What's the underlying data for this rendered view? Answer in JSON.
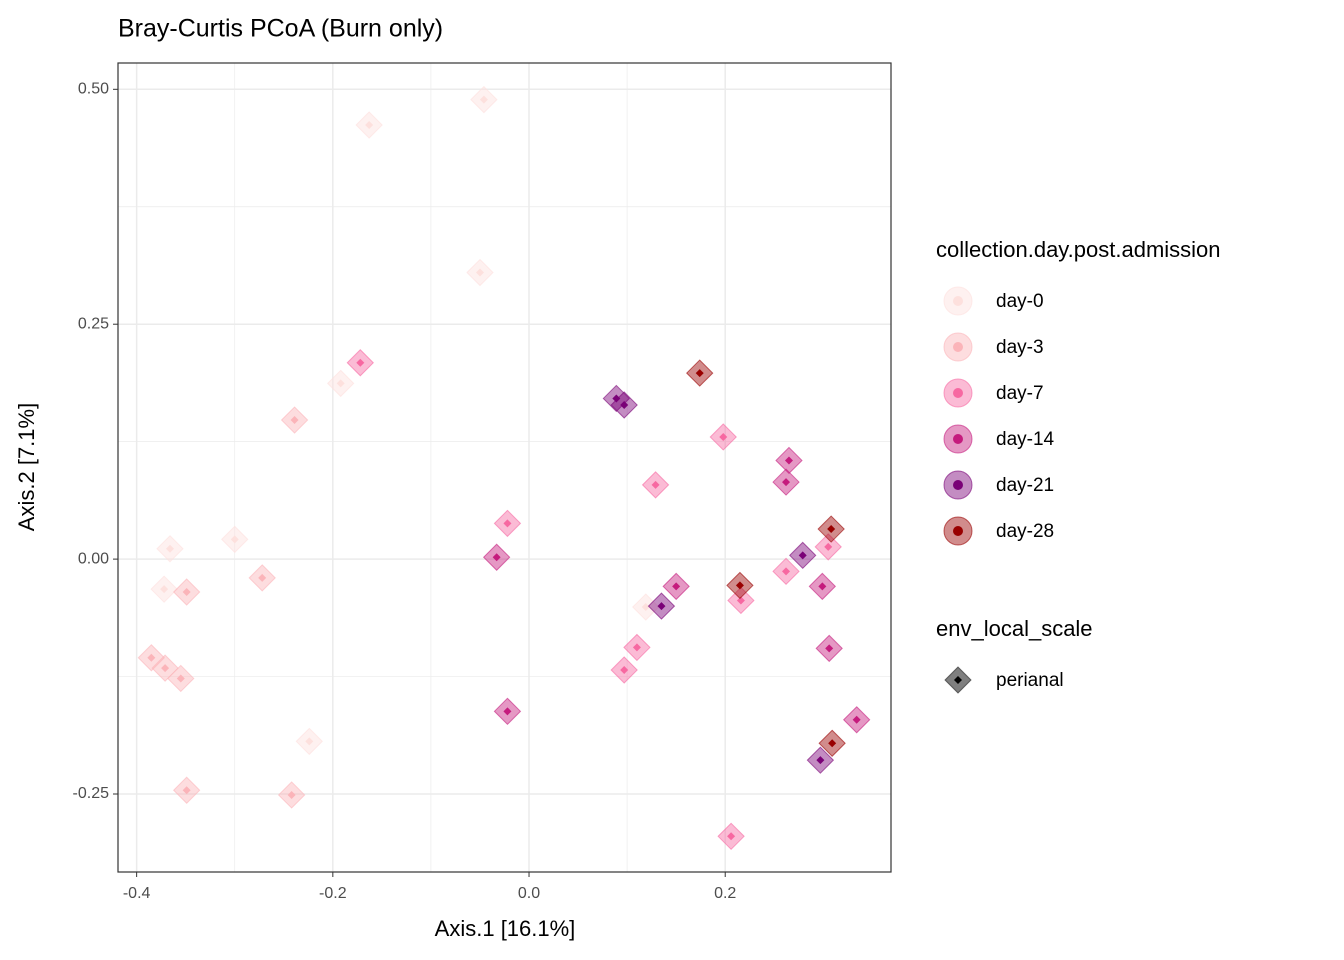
{
  "chart_data": {
    "type": "scatter",
    "title": "Bray-Curtis PCoA (Burn only)",
    "x_label": "Axis.1   [16.1%]",
    "y_label": "Axis.2   [7.1%]",
    "xlim": [
      -0.419,
      0.369
    ],
    "ylim": [
      -0.333,
      0.528
    ],
    "xticks": [
      -0.4,
      -0.2,
      {
        "value": 0,
        "label": "0.0"
      },
      0.2
    ],
    "yticks": [
      {
        "value": 0.5,
        "label": "0.50"
      },
      0.25,
      {
        "value": 0,
        "label": "0.00"
      },
      -0.25
    ],
    "grid": true,
    "minor_grid": true,
    "legend_title": "collection.day.post.admission",
    "shape_legend_title": "env_local_scale",
    "shape_legend_labels": [
      "perianal"
    ],
    "legend_position": "right",
    "series": [
      {
        "name": "day-0",
        "color": "#fde0dd",
        "x": [
          -0.046,
          -0.163,
          -0.05,
          -0.192,
          -0.3,
          -0.366,
          -0.372,
          -0.224,
          0.119
        ],
        "values": [
          0.489,
          0.462,
          0.305,
          0.187,
          0.021,
          0.011,
          -0.032,
          -0.194,
          -0.051
        ]
      },
      {
        "name": "day-3",
        "color": "#fbb4b9",
        "x": [
          -0.239,
          -0.272,
          -0.349,
          -0.385,
          -0.371,
          -0.355,
          -0.349,
          -0.242
        ],
        "values": [
          0.148,
          -0.02,
          -0.035,
          -0.105,
          -0.116,
          -0.127,
          -0.246,
          -0.251
        ]
      },
      {
        "name": "day-7",
        "color": "#f768a1",
        "x": [
          -0.172,
          0.198,
          0.129,
          -0.022,
          0.305,
          0.262,
          0.216,
          0.11,
          0.097,
          0.206
        ],
        "values": [
          0.209,
          0.13,
          0.079,
          0.038,
          0.013,
          -0.013,
          -0.044,
          -0.094,
          -0.118,
          -0.295
        ]
      },
      {
        "name": "day-14",
        "color": "#c51b7d",
        "x": [
          0.265,
          0.262,
          -0.033,
          0.15,
          0.299,
          0.306,
          -0.022,
          0.334
        ],
        "values": [
          0.105,
          0.082,
          0.002,
          -0.029,
          -0.029,
          -0.095,
          -0.162,
          -0.171
        ]
      },
      {
        "name": "day-21",
        "color": "#7a0177",
        "x": [
          0.089,
          0.097,
          0.279,
          0.135,
          0.297
        ],
        "values": [
          0.171,
          0.164,
          0.004,
          -0.05,
          -0.214
        ]
      },
      {
        "name": "day-28",
        "color": "#990000",
        "x": [
          0.174,
          0.308,
          0.215,
          0.309
        ],
        "values": [
          0.198,
          0.032,
          -0.028,
          -0.196
        ]
      }
    ]
  }
}
